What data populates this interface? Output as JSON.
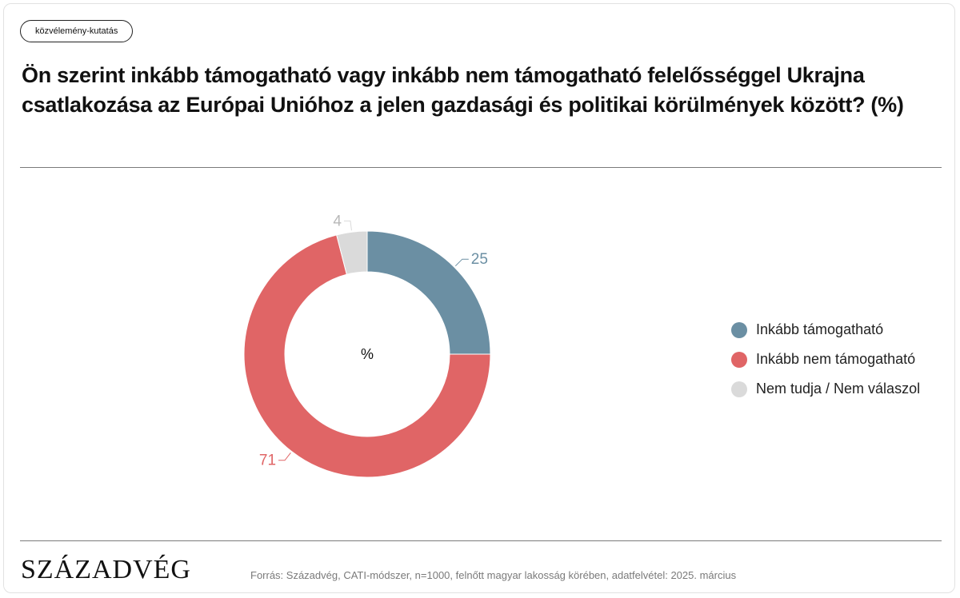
{
  "tag": "közvélemény-kutatás",
  "title": "Ön szerint inkább támogatható vagy inkább nem támogatható felelősséggel Ukrajna csatlakozása az Európai Unióhoz a jelen gazdasági és politikai körülmények között? (%)",
  "logo": "SZÁZADVÉG",
  "source": "Forrás: Századvég, CATI-módszer, n=1000, felnőtt magyar lakosság körében, adatfelvétel: 2025. március",
  "chart_data": {
    "type": "pie",
    "donut": true,
    "center_label": "%",
    "legend_position": "right",
    "slices": [
      {
        "label": "Inkább támogatható",
        "value": 25,
        "color": "#6b8fa3"
      },
      {
        "label": "Inkább nem támogatható",
        "value": 71,
        "color": "#e06566"
      },
      {
        "label": "Nem tudja / Nem válaszol",
        "value": 4,
        "color": "#dadada"
      }
    ]
  }
}
